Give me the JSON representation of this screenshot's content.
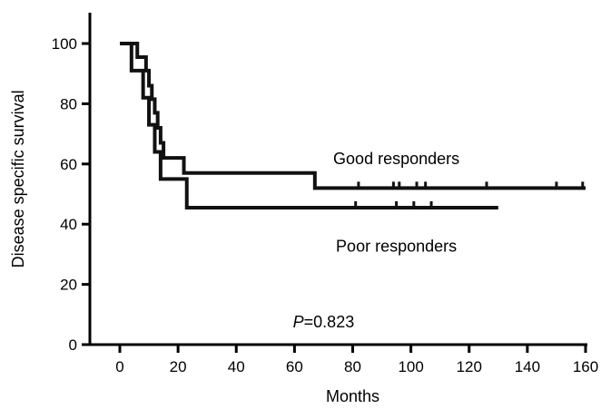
{
  "chart_data": {
    "type": "line",
    "subtype": "kaplan-meier survival curves",
    "title": "",
    "xlabel": "Months",
    "ylabel": "Disease specific survival",
    "xlim": [
      -10,
      160
    ],
    "ylim": [
      0,
      110
    ],
    "xticks": [
      0,
      20,
      40,
      60,
      80,
      100,
      120,
      140,
      160
    ],
    "yticks": [
      0,
      20,
      40,
      60,
      80,
      100
    ],
    "grid": false,
    "legend": "none",
    "series": [
      {
        "name": "Good responders",
        "color": "#111111",
        "steps": [
          [
            0,
            100
          ],
          [
            6,
            95.5
          ],
          [
            9,
            91
          ],
          [
            10,
            86
          ],
          [
            11,
            81.5
          ],
          [
            12,
            77
          ],
          [
            13,
            72
          ],
          [
            14,
            67
          ],
          [
            15,
            62
          ],
          [
            22,
            57
          ],
          [
            67,
            52
          ],
          [
            160,
            52
          ]
        ],
        "censored": [
          82,
          94,
          96,
          102,
          105,
          126,
          150,
          159
        ]
      },
      {
        "name": "Poor responders",
        "color": "#111111",
        "steps": [
          [
            0,
            100
          ],
          [
            4,
            91
          ],
          [
            8,
            82
          ],
          [
            10,
            73
          ],
          [
            12,
            64
          ],
          [
            14,
            55
          ],
          [
            23,
            45.5
          ],
          [
            130,
            45.5
          ]
        ],
        "censored": [
          81,
          95,
          101,
          107
        ]
      }
    ],
    "annotations": [
      {
        "text": "Good responders",
        "x": 95,
        "y": 62
      },
      {
        "text": "Poor responders",
        "x": 95,
        "y": 33
      }
    ],
    "p_value": {
      "label": "P",
      "text": "=0.823",
      "x": 70,
      "y": 7.5
    }
  }
}
